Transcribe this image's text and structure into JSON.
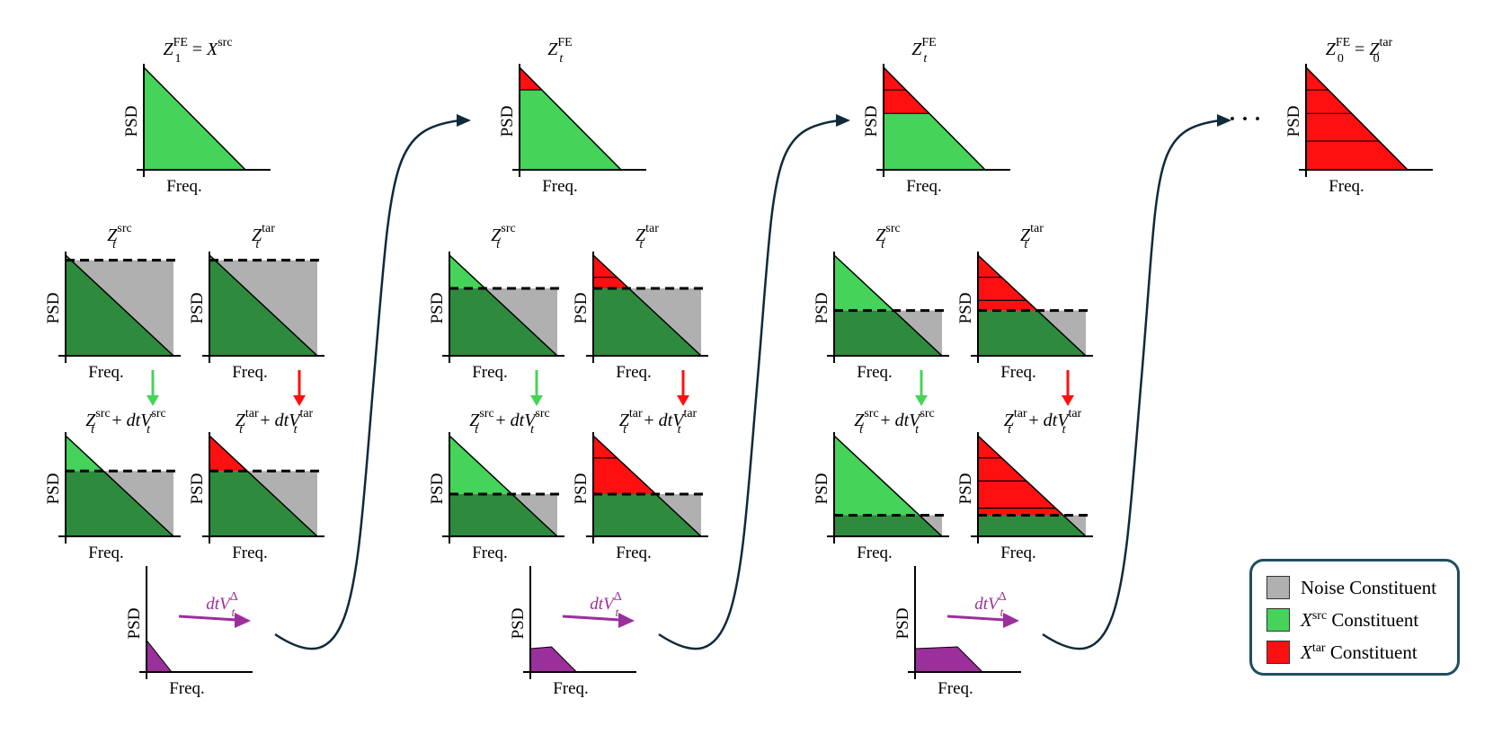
{
  "colors": {
    "noise": "#b0b0b0",
    "src_light": "#45d35a",
    "src_dark": "#2e8b3e",
    "tar": "#ff1010",
    "delta": "#9b2f9b",
    "arrow_green": "#45d35a",
    "arrow_red": "#ff1010",
    "connector": "#0f2a3a",
    "legend_border": "#1f4e5f"
  },
  "axis": {
    "x_label": "Freq.",
    "y_label": "PSD"
  },
  "top_titles": {
    "t1": {
      "var": "Z",
      "sup": "FE",
      "sub": "1",
      "eq": " = ",
      "rhs_var": "X",
      "rhs_sup": "src"
    },
    "t2": {
      "var": "Z",
      "sup": "FE",
      "sub": "t"
    },
    "t3": {
      "var": "Z",
      "sup": "FE",
      "sub": "t"
    },
    "t4": {
      "var": "Z",
      "sup": "FE",
      "sub": "0",
      "eq": " = ",
      "rhs_var": "Z",
      "rhs_sup": "tar",
      "rhs_sub": "0"
    }
  },
  "panel_titles": {
    "src": {
      "var": "Z",
      "sup": "src",
      "sub": "t"
    },
    "tar": {
      "var": "Z",
      "sup": "tar",
      "sub": "t"
    },
    "src_update": {
      "var": "Z",
      "sup": "src",
      "sub": "t",
      "plus": " + ",
      "dt": "dtV",
      "dt_sup": "src",
      "dt_sub": "t"
    },
    "tar_update": {
      "var": "Z",
      "sup": "tar",
      "sub": "t",
      "plus": " + ",
      "dt": "dtV",
      "dt_sup": "tar",
      "dt_sub": "t"
    }
  },
  "delta_label": {
    "text": "dtV",
    "sup": "Δ",
    "sub": "t"
  },
  "ellipsis": "· · ·",
  "legend": {
    "noise": "Noise Constituent",
    "src": {
      "var": "X",
      "sup": "src",
      "text": " Constituent"
    },
    "tar": {
      "var": "X",
      "sup": "tar",
      "text": " Constituent"
    }
  },
  "stages": [
    {
      "fe_tar_levels": [
        0
      ],
      "src_noise": 0.05,
      "tar_noise": 0.05,
      "srcU_noise": 0.35,
      "tarU_noise": 0.35,
      "tarU_levels": [
        0
      ],
      "tar_levels": [],
      "delta_level": 0.3,
      "delta_plateau": 0.0
    },
    {
      "fe_tar_levels": [
        0.78
      ],
      "src_noise": 0.33,
      "tar_noise": 0.33,
      "srcU_noise": 0.58,
      "tarU_noise": 0.58,
      "tarU_levels": [
        0.78
      ],
      "tar_levels": [
        0.78
      ],
      "delta_level": 0.22,
      "delta_plateau": 0.2
    },
    {
      "fe_tar_levels": [
        0.78,
        0.55
      ],
      "src_noise": 0.55,
      "tar_noise": 0.55,
      "srcU_noise": 0.79,
      "tarU_noise": 0.79,
      "tarU_levels": [
        0.78,
        0.55,
        0.28
      ],
      "tar_levels": [
        0.78,
        0.55
      ],
      "delta_level": 0.22,
      "delta_plateau": 0.4
    }
  ],
  "final_tar_levels": [
    0.78,
    0.55,
    0.28
  ]
}
